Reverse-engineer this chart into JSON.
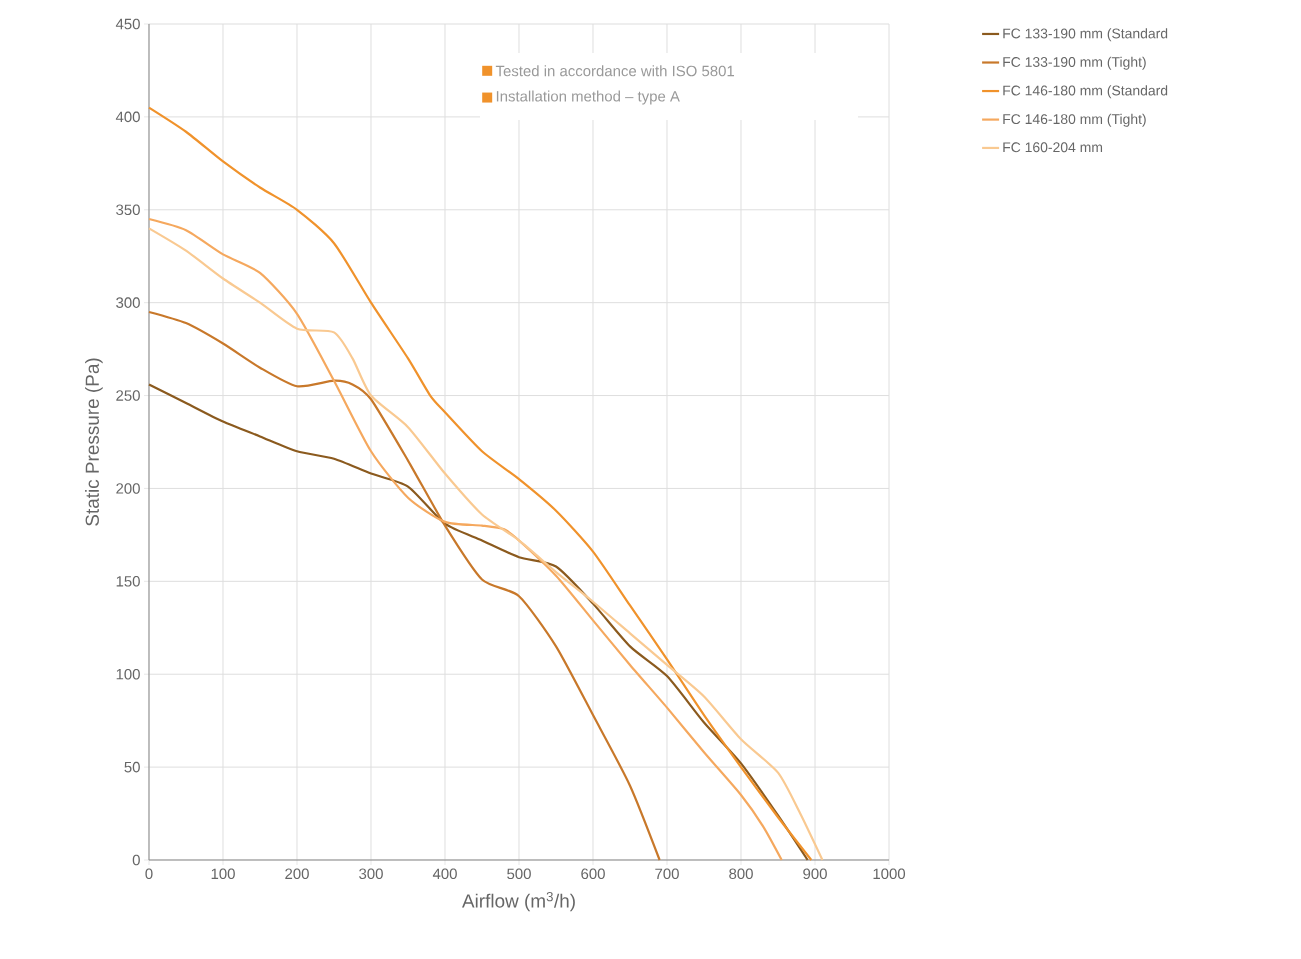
{
  "chart_data": {
    "type": "line",
    "xlabel": "Airflow (m$^{3}$/h)",
    "ylabel": "Static Pressure (Pa)",
    "xlim": [
      0,
      1000
    ],
    "ylim": [
      0,
      450
    ],
    "xticks": [
      0,
      100,
      200,
      300,
      400,
      500,
      600,
      700,
      800,
      900,
      1000
    ],
    "yticks": [
      0,
      50,
      100,
      150,
      200,
      250,
      300,
      350,
      400,
      450
    ],
    "grid": true,
    "legend": "top right",
    "marker": "none",
    "line_style": "solid",
    "annotations": [
      "Tested in accordance with ISO 5801",
      "Installation method – type A"
    ],
    "series": [
      {
        "name": "FC 133-190 mm (Standard",
        "color": "#8b5a1e",
        "x": [
          0,
          50,
          100,
          150,
          200,
          250,
          300,
          350,
          400,
          450,
          500,
          550,
          600,
          650,
          700,
          750,
          800,
          850,
          890
        ],
        "values": [
          256,
          246,
          236,
          228,
          220,
          216,
          208,
          201,
          181,
          172,
          163,
          158,
          138,
          115,
          99,
          74,
          52,
          24,
          0
        ]
      },
      {
        "name": "FC 133-190 mm (Tight)",
        "color": "#c8782a",
        "x": [
          0,
          50,
          100,
          150,
          200,
          250,
          275,
          300,
          350,
          400,
          450,
          500,
          550,
          600,
          650,
          690
        ],
        "values": [
          295,
          289,
          278,
          265,
          255,
          258,
          256,
          248,
          215,
          180,
          151,
          142,
          115,
          78,
          40,
          0
        ]
      },
      {
        "name": "FC 146-180 mm (Standard",
        "color": "#f0922b",
        "x": [
          0,
          50,
          100,
          150,
          200,
          250,
          300,
          350,
          380,
          400,
          450,
          500,
          550,
          600,
          650,
          700,
          750,
          800,
          850,
          895
        ],
        "values": [
          405,
          392,
          376,
          362,
          350,
          332,
          300,
          270,
          250,
          241,
          220,
          205,
          188,
          166,
          137,
          108,
          78,
          50,
          23,
          0
        ]
      },
      {
        "name": "FC 146-180 mm (Tight)",
        "color": "#f5a85e",
        "x": [
          0,
          50,
          100,
          150,
          200,
          250,
          300,
          350,
          400,
          450,
          480,
          500,
          550,
          600,
          650,
          700,
          750,
          800,
          830,
          855
        ],
        "values": [
          345,
          339,
          326,
          316,
          294,
          258,
          220,
          195,
          182,
          180,
          178,
          172,
          153,
          129,
          105,
          82,
          58,
          35,
          18,
          0
        ]
      },
      {
        "name": "FC 160-204 mm",
        "color": "#f9c991",
        "x": [
          0,
          50,
          100,
          150,
          200,
          250,
          275,
          300,
          350,
          400,
          450,
          500,
          550,
          600,
          650,
          700,
          750,
          800,
          850,
          880,
          910
        ],
        "values": [
          340,
          328,
          313,
          300,
          286,
          284,
          270,
          250,
          233,
          208,
          186,
          172,
          155,
          139,
          122,
          105,
          88,
          65,
          47,
          25,
          0
        ]
      }
    ]
  }
}
